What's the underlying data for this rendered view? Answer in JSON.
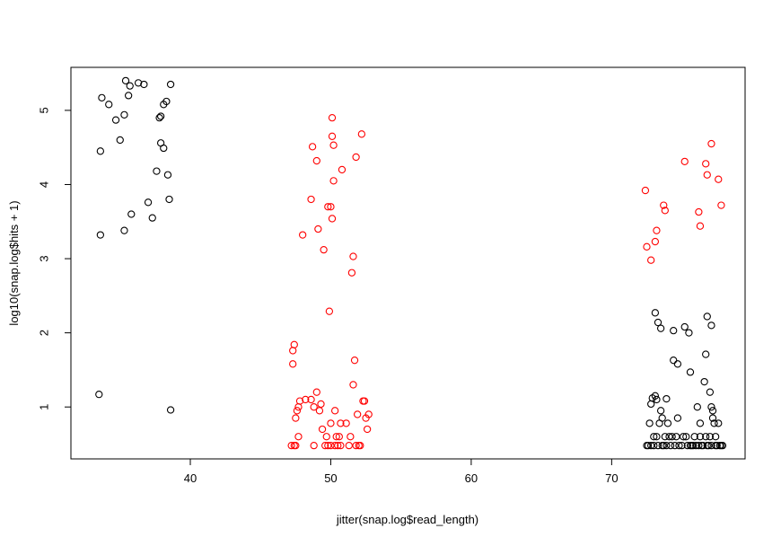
{
  "chart_data": {
    "type": "scatter",
    "title": "",
    "xlabel": "jitter(snap.log$read_length)",
    "ylabel": "log10(snap.log$hits + 1)",
    "xlim": [
      31.5,
      79.5
    ],
    "ylim": [
      0.3,
      5.58
    ],
    "x_ticks": [
      40,
      50,
      60,
      70
    ],
    "y_ticks": [
      1,
      2,
      3,
      4,
      5
    ],
    "grid": false,
    "legend": "none",
    "colors": {
      "black": "#000000",
      "red": "#ff0000"
    },
    "series": [
      {
        "color": "#000000",
        "points": [
          [
            33.5,
            1.17
          ],
          [
            33.6,
            3.32
          ],
          [
            33.6,
            4.45
          ],
          [
            33.7,
            5.17
          ],
          [
            34.2,
            5.08
          ],
          [
            34.7,
            4.87
          ],
          [
            35.0,
            4.6
          ],
          [
            35.3,
            4.94
          ],
          [
            35.3,
            3.38
          ],
          [
            35.4,
            5.4
          ],
          [
            35.6,
            5.2
          ],
          [
            35.7,
            5.33
          ],
          [
            35.8,
            3.6
          ],
          [
            36.3,
            5.37
          ],
          [
            36.7,
            5.35
          ],
          [
            37.0,
            3.76
          ],
          [
            37.3,
            3.55
          ],
          [
            37.6,
            4.18
          ],
          [
            37.8,
            4.9
          ],
          [
            37.9,
            4.92
          ],
          [
            37.9,
            4.56
          ],
          [
            38.1,
            4.49
          ],
          [
            38.1,
            5.08
          ],
          [
            38.3,
            5.12
          ],
          [
            38.4,
            4.13
          ],
          [
            38.5,
            3.8
          ],
          [
            38.6,
            5.35
          ],
          [
            38.6,
            0.96
          ],
          [
            72.5,
            0.48
          ],
          [
            72.6,
            0.48
          ],
          [
            72.7,
            0.78
          ],
          [
            72.8,
            0.48
          ],
          [
            72.8,
            1.04
          ],
          [
            72.9,
            1.12
          ],
          [
            73.0,
            0.48
          ],
          [
            73.0,
            0.6
          ],
          [
            73.1,
            1.15
          ],
          [
            73.1,
            2.27
          ],
          [
            73.2,
            1.1
          ],
          [
            73.2,
            0.6
          ],
          [
            73.3,
            0.48
          ],
          [
            73.3,
            2.14
          ],
          [
            73.4,
            0.78
          ],
          [
            73.5,
            0.95
          ],
          [
            73.5,
            2.06
          ],
          [
            73.6,
            0.48
          ],
          [
            73.6,
            0.85
          ],
          [
            73.7,
            0.48
          ],
          [
            73.8,
            0.6
          ],
          [
            73.9,
            1.11
          ],
          [
            73.9,
            0.48
          ],
          [
            74.0,
            0.78
          ],
          [
            74.1,
            0.6
          ],
          [
            74.2,
            0.48
          ],
          [
            74.3,
            0.6
          ],
          [
            74.4,
            2.03
          ],
          [
            74.4,
            1.63
          ],
          [
            74.5,
            0.48
          ],
          [
            74.6,
            0.6
          ],
          [
            74.7,
            1.58
          ],
          [
            74.7,
            0.85
          ],
          [
            74.8,
            0.48
          ],
          [
            75.0,
            0.48
          ],
          [
            75.1,
            0.6
          ],
          [
            75.2,
            2.08
          ],
          [
            75.3,
            0.6
          ],
          [
            75.4,
            0.48
          ],
          [
            75.5,
            2.0
          ],
          [
            75.6,
            1.47
          ],
          [
            75.6,
            0.48
          ],
          [
            75.7,
            0.48
          ],
          [
            75.8,
            0.48
          ],
          [
            75.9,
            0.6
          ],
          [
            76.0,
            0.48
          ],
          [
            76.1,
            1.0
          ],
          [
            76.2,
            0.48
          ],
          [
            76.3,
            0.78
          ],
          [
            76.3,
            0.6
          ],
          [
            76.4,
            0.48
          ],
          [
            76.5,
            0.48
          ],
          [
            76.6,
            1.34
          ],
          [
            76.7,
            1.71
          ],
          [
            76.7,
            0.6
          ],
          [
            76.8,
            0.48
          ],
          [
            76.8,
            2.22
          ],
          [
            76.9,
            0.48
          ],
          [
            77.0,
            1.2
          ],
          [
            77.0,
            0.6
          ],
          [
            77.1,
            0.48
          ],
          [
            77.1,
            1.0
          ],
          [
            77.1,
            2.1
          ],
          [
            77.2,
            0.95
          ],
          [
            77.2,
            0.85
          ],
          [
            77.3,
            0.78
          ],
          [
            77.4,
            0.48
          ],
          [
            77.4,
            0.6
          ],
          [
            77.5,
            0.48
          ],
          [
            77.6,
            0.78
          ],
          [
            77.7,
            0.48
          ],
          [
            77.8,
            0.48
          ],
          [
            77.9,
            0.48
          ]
        ]
      },
      {
        "color": "#ff0000",
        "points": [
          [
            47.2,
            0.48
          ],
          [
            47.3,
            1.76
          ],
          [
            47.4,
            0.48
          ],
          [
            47.3,
            1.58
          ],
          [
            47.4,
            1.84
          ],
          [
            47.5,
            0.48
          ],
          [
            47.5,
            0.85
          ],
          [
            47.6,
            0.95
          ],
          [
            47.7,
            0.6
          ],
          [
            47.7,
            1.0
          ],
          [
            47.8,
            1.08
          ],
          [
            48.0,
            3.32
          ],
          [
            48.2,
            1.1
          ],
          [
            48.6,
            3.8
          ],
          [
            48.6,
            1.1
          ],
          [
            48.7,
            4.51
          ],
          [
            48.8,
            1.0
          ],
          [
            48.8,
            0.48
          ],
          [
            49.0,
            4.32
          ],
          [
            49.0,
            1.2
          ],
          [
            49.1,
            3.4
          ],
          [
            49.2,
            0.95
          ],
          [
            49.3,
            1.04
          ],
          [
            49.4,
            0.7
          ],
          [
            49.5,
            3.12
          ],
          [
            49.6,
            0.48
          ],
          [
            49.7,
            0.6
          ],
          [
            49.8,
            0.48
          ],
          [
            49.8,
            3.7
          ],
          [
            49.9,
            2.29
          ],
          [
            50.0,
            3.7
          ],
          [
            50.0,
            0.78
          ],
          [
            50.0,
            0.48
          ],
          [
            50.1,
            4.65
          ],
          [
            50.1,
            3.54
          ],
          [
            50.1,
            4.9
          ],
          [
            50.2,
            4.53
          ],
          [
            50.2,
            4.05
          ],
          [
            50.3,
            0.95
          ],
          [
            50.3,
            0.48
          ],
          [
            50.4,
            0.6
          ],
          [
            50.5,
            0.48
          ],
          [
            50.6,
            0.6
          ],
          [
            50.7,
            0.78
          ],
          [
            50.7,
            0.48
          ],
          [
            50.8,
            4.2
          ],
          [
            51.1,
            0.78
          ],
          [
            51.3,
            0.48
          ],
          [
            51.4,
            0.6
          ],
          [
            51.5,
            2.81
          ],
          [
            51.6,
            3.03
          ],
          [
            51.6,
            1.3
          ],
          [
            51.7,
            1.63
          ],
          [
            51.8,
            4.37
          ],
          [
            51.8,
            0.48
          ],
          [
            51.9,
            0.9
          ],
          [
            52.0,
            0.48
          ],
          [
            52.1,
            0.48
          ],
          [
            52.2,
            4.68
          ],
          [
            52.3,
            1.08
          ],
          [
            52.4,
            1.08
          ],
          [
            52.5,
            0.85
          ],
          [
            52.6,
            0.7
          ],
          [
            52.7,
            0.9
          ],
          [
            72.4,
            3.92
          ],
          [
            72.5,
            3.16
          ],
          [
            72.8,
            2.98
          ],
          [
            73.1,
            3.23
          ],
          [
            73.2,
            3.38
          ],
          [
            73.7,
            3.72
          ],
          [
            73.8,
            3.65
          ],
          [
            75.2,
            4.31
          ],
          [
            76.2,
            3.63
          ],
          [
            76.3,
            3.44
          ],
          [
            76.7,
            4.28
          ],
          [
            76.8,
            4.13
          ],
          [
            77.1,
            4.55
          ],
          [
            77.6,
            4.07
          ],
          [
            77.8,
            3.72
          ]
        ]
      }
    ]
  }
}
